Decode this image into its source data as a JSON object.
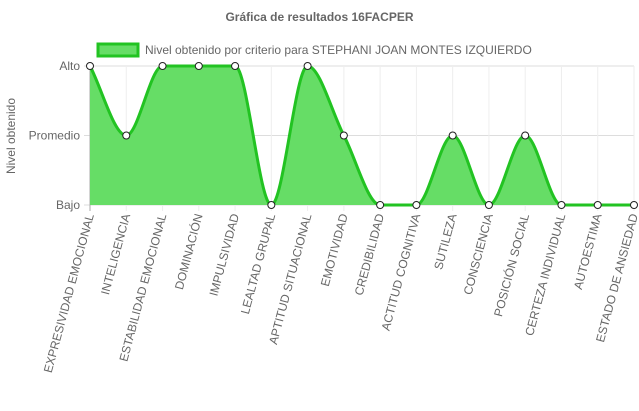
{
  "chart_data": {
    "type": "area",
    "title": "Gráfica de resultados 16FACPER",
    "ylabel": "Nivel obtenido",
    "xlabel": "",
    "y_levels": [
      "Bajo",
      "Promedio",
      "Alto"
    ],
    "ylim": [
      0,
      2
    ],
    "legend_position": "top",
    "grid": true,
    "categories": [
      "EXPRESIVIDAD EMOCIONAL",
      "INTELIGENCIA",
      "ESTABILIDAD EMOCIONAL",
      "DOMINACIÓN",
      "IMPULSIVIDAD",
      "LEALTAD GRUPAL",
      "APTITUD SITUACIONAL",
      "EMOTIVIDAD",
      "CREDIBILIDAD",
      "ACTITUD COGNITIVA",
      "SUTILEZA",
      "CONSCIENCIA",
      "POSICIÓN SOCIAL",
      "CERTEZA INDIVIDUAL",
      "AUTOESTIMA",
      "ESTADO DE ANSIEDAD"
    ],
    "series": [
      {
        "name": "Nivel obtenido por criterio para STEPHANI JOAN MONTES IZQUIERDO",
        "values": [
          2,
          1,
          2,
          2,
          2,
          0,
          2,
          1,
          0,
          0,
          1,
          0,
          1,
          0,
          0,
          0
        ],
        "color": "#22c322",
        "fill": "#66dd66"
      }
    ]
  }
}
